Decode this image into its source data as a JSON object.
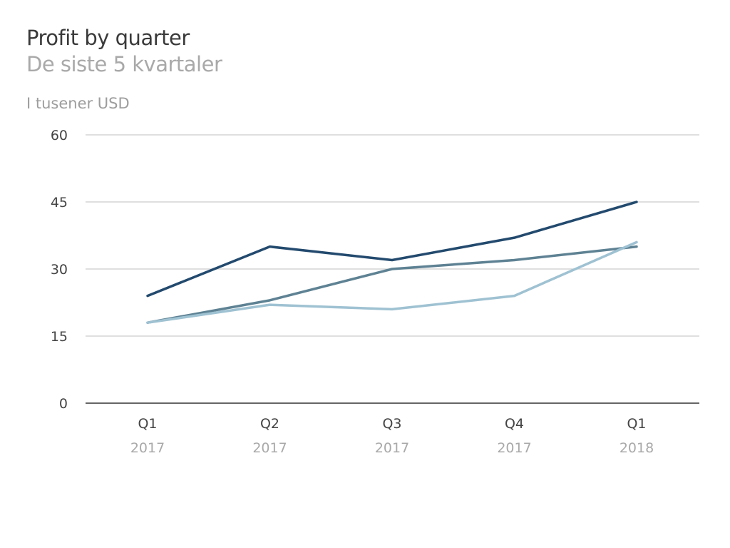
{
  "chart_data": {
    "type": "line",
    "title": "Profit by quarter",
    "subtitle": "De siste 5 kvartaler",
    "ylabel": "I tusener USD",
    "categories": [
      {
        "quarter": "Q1",
        "year": "2017"
      },
      {
        "quarter": "Q2",
        "year": "2017"
      },
      {
        "quarter": "Q3",
        "year": "2017"
      },
      {
        "quarter": "Q4",
        "year": "2017"
      },
      {
        "quarter": "Q1",
        "year": "2018"
      }
    ],
    "yticks": [
      "60",
      "45",
      "30",
      "15",
      "0"
    ],
    "ylim": [
      0,
      60
    ],
    "grid": true,
    "series": [
      {
        "values": [
          24,
          35,
          32,
          37,
          45
        ],
        "color": "#234a6e"
      },
      {
        "values": [
          18,
          23,
          30,
          32,
          35
        ],
        "color": "#5e8293"
      },
      {
        "values": [
          18,
          22,
          21,
          24,
          36
        ],
        "color": "#9fc2d2"
      }
    ],
    "colors": {
      "grid": "#cccccc",
      "axis": "#333333"
    }
  }
}
